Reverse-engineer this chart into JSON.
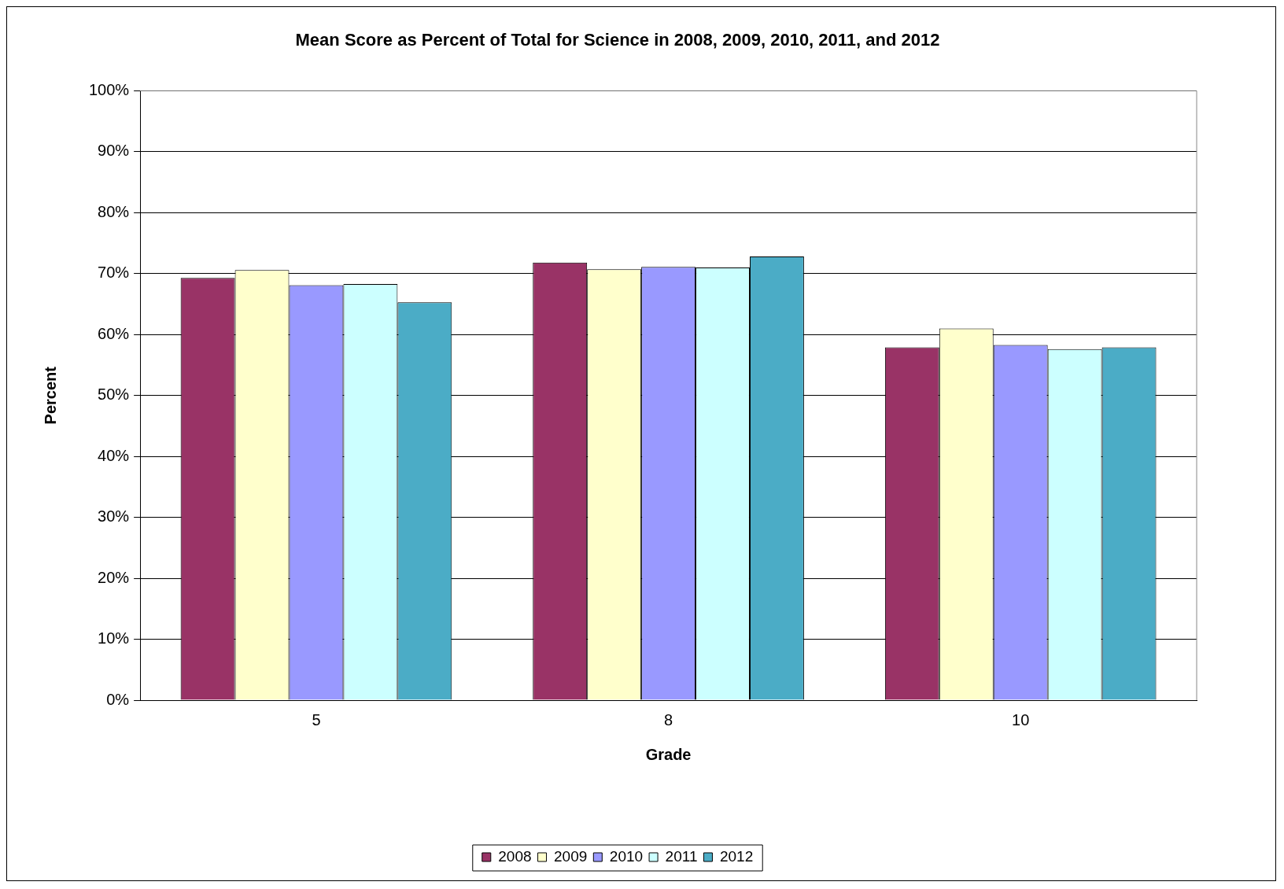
{
  "chart_data": {
    "type": "bar",
    "title": "Mean Score as Percent of Total for Science in 2008, 2009, 2010, 2011, and 2012",
    "xlabel": "Grade",
    "ylabel": "Percent",
    "categories": [
      "5",
      "8",
      "10"
    ],
    "series": [
      {
        "name": "2008",
        "color": "#993366",
        "values": [
          69.3,
          71.8,
          57.9
        ]
      },
      {
        "name": "2009",
        "color": "#ffffcc",
        "values": [
          70.6,
          70.7,
          61.0
        ]
      },
      {
        "name": "2010",
        "color": "#9999ff",
        "values": [
          68.1,
          71.1,
          58.3
        ]
      },
      {
        "name": "2011",
        "color": "#ccffff",
        "values": [
          68.3,
          71.0,
          57.6
        ]
      },
      {
        "name": "2012",
        "color": "#4bacc6",
        "values": [
          65.3,
          72.8,
          57.9
        ]
      }
    ],
    "ylim": [
      0,
      100
    ],
    "yticks": [
      {
        "value": 0,
        "label": "0%"
      },
      {
        "value": 10,
        "label": "10%"
      },
      {
        "value": 20,
        "label": "20%"
      },
      {
        "value": 30,
        "label": "30%"
      },
      {
        "value": 40,
        "label": "40%"
      },
      {
        "value": 50,
        "label": "50%"
      },
      {
        "value": 60,
        "label": "60%"
      },
      {
        "value": 70,
        "label": "70%"
      },
      {
        "value": 80,
        "label": "80%"
      },
      {
        "value": 90,
        "label": "90%"
      },
      {
        "value": 100,
        "label": "100%"
      }
    ],
    "grid": "y",
    "legend": "bottom"
  }
}
